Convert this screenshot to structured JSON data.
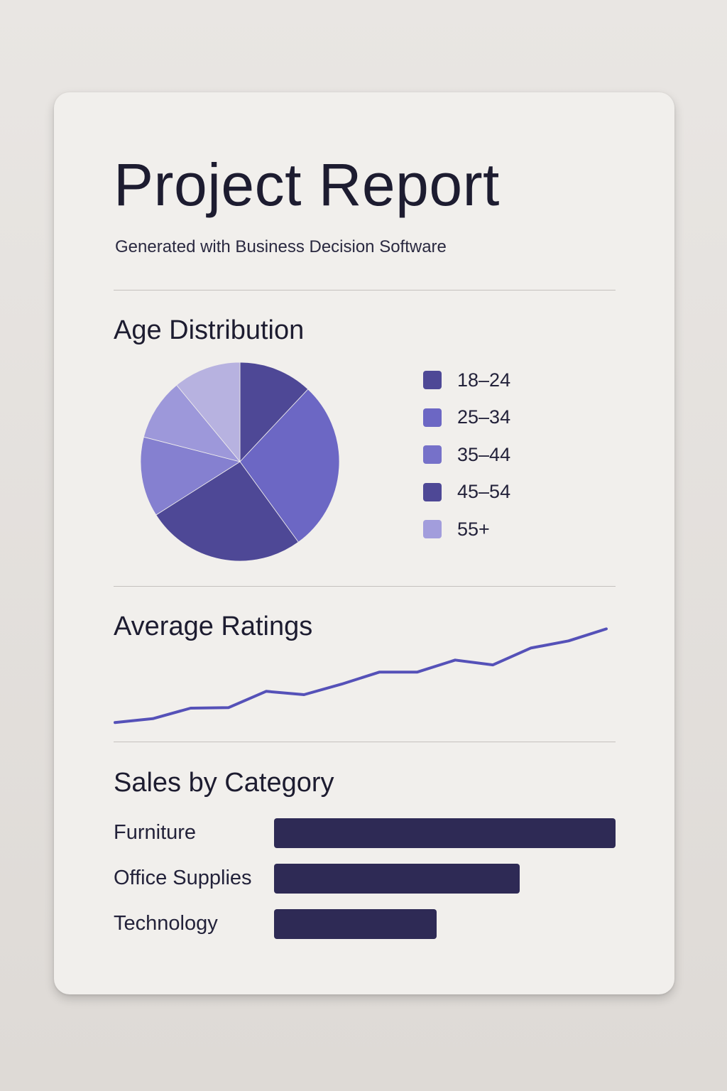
{
  "report": {
    "title": "Project Report",
    "subtitle": "Generated with Business Decision Software"
  },
  "chart_data": [
    {
      "type": "pie",
      "title": "Age Distribution",
      "legend_position": "right",
      "slices": [
        {
          "label": "18-24",
          "value": 12,
          "color": "#4e4896"
        },
        {
          "label": "25-34",
          "value": 28,
          "color": "#6c67c4"
        },
        {
          "label": "45-54",
          "value": 26,
          "color": "#4e4896"
        },
        {
          "label": "35-44",
          "value": 13,
          "color": "#8580d0"
        },
        {
          "label": "55+",
          "value": 10,
          "color": "#9d98da"
        },
        {
          "label": "",
          "value": 11,
          "color": "#b7b2e0"
        }
      ],
      "legend": [
        {
          "label": "18–24",
          "color": "#4e4896"
        },
        {
          "label": "25–34",
          "color": "#6c67c4"
        },
        {
          "label": "35–44",
          "color": "#7671c9"
        },
        {
          "label": "45–54",
          "color": "#4e4896"
        },
        {
          "label": "55+",
          "color": "#a29ddc"
        }
      ]
    },
    {
      "type": "line",
      "title": "Average Ratings",
      "grid": false,
      "color": "#5551b8",
      "x": [
        1,
        2,
        3,
        4,
        5,
        6,
        7,
        8,
        9,
        10,
        11,
        12,
        13,
        14
      ],
      "values": [
        1.0,
        1.8,
        4.0,
        4.1,
        7.5,
        6.8,
        9.0,
        11.5,
        11.5,
        14.0,
        13.0,
        16.5,
        18.0,
        20.5
      ],
      "ylim": [
        0,
        21
      ]
    },
    {
      "type": "bar",
      "orientation": "horizontal",
      "title": "Sales by Category",
      "color": "#2e2a55",
      "categories": [
        "Furniture",
        "Office Supplies",
        "Technology"
      ],
      "values": [
        100,
        72,
        47.5
      ],
      "xlim": [
        0,
        100
      ]
    }
  ]
}
